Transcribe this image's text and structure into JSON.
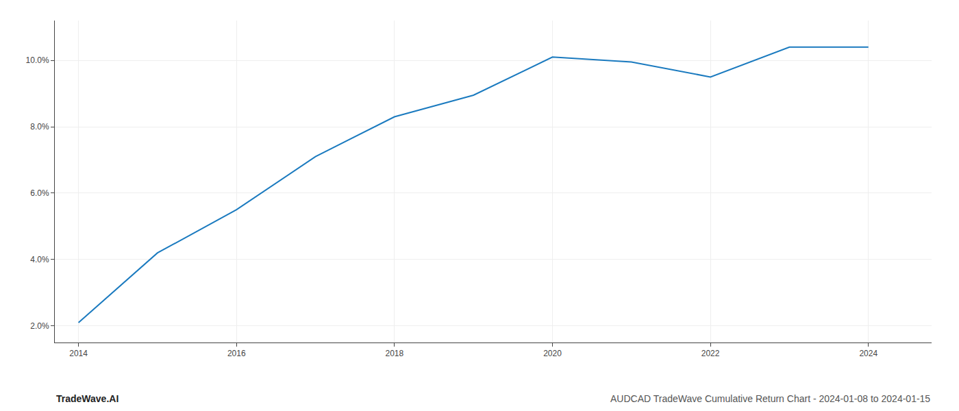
{
  "chart_data": {
    "type": "line",
    "title": "AUDCAD TradeWave Cumulative Return Chart - 2024-01-08 to 2024-01-15",
    "annotations": [
      "TradeWave.AI"
    ],
    "x": [
      2014,
      2015,
      2016,
      2017,
      2018,
      2019,
      2020,
      2021,
      2022,
      2023,
      2024
    ],
    "values": [
      2.1,
      4.2,
      5.5,
      7.1,
      8.3,
      8.95,
      10.1,
      9.95,
      9.5,
      10.4,
      10.4
    ],
    "color": "#1a7abf",
    "xlim": [
      2013.7,
      2024.8
    ],
    "ylim": [
      1.5,
      11.2
    ],
    "xticks": [
      2014,
      2016,
      2018,
      2020,
      2022,
      2024
    ],
    "yticks": [
      {
        "value": 2.0,
        "label": "2.0%"
      },
      {
        "value": 4.0,
        "label": "4.0%"
      },
      {
        "value": 6.0,
        "label": "6.0%"
      },
      {
        "value": 8.0,
        "label": "8.0%"
      },
      {
        "value": 10.0,
        "label": "10.0%"
      }
    ],
    "grid": true
  }
}
